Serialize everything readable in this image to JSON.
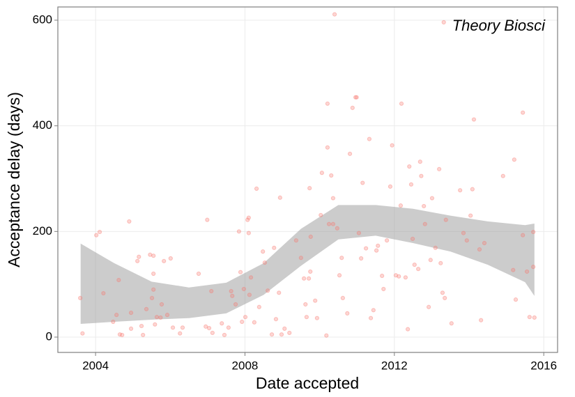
{
  "chart_data": {
    "type": "scatter",
    "x_label": "Date accepted",
    "y_label": "Acceptance delay (days)",
    "xlim": [
      2002.99,
      2016.37
    ],
    "ylim": [
      -29,
      625
    ],
    "xticks": [
      2004,
      2008,
      2012,
      2016
    ],
    "yticks": [
      0,
      200,
      400,
      600
    ],
    "grid": true,
    "legend_position": "top-right",
    "band": {
      "color": "#999999",
      "x": [
        2003.6,
        2004.5,
        2005.5,
        2006.5,
        2007.5,
        2008.5,
        2009.5,
        2010.5,
        2011.5,
        2012.5,
        2013.5,
        2014.5,
        2015.5,
        2015.75
      ],
      "upper": [
        177,
        140,
        105,
        94,
        103,
        140,
        205,
        250,
        250,
        243,
        230,
        219,
        212,
        215
      ],
      "lower": [
        25,
        29,
        33,
        36,
        45,
        80,
        135,
        185,
        192,
        178,
        162,
        137,
        104,
        78
      ]
    },
    "series": [
      {
        "name": "Theory Biosci",
        "color": "#F8766D",
        "x": [
          2003.59,
          2003.65,
          2004.02,
          2004.11,
          2004.21,
          2004.47,
          2004.56,
          2004.62,
          2004.65,
          2004.71,
          2004.9,
          2004.95,
          2004.95,
          2005.12,
          2005.16,
          2005.23,
          2005.27,
          2005.36,
          2005.46,
          2005.51,
          2005.55,
          2005.55,
          2005.55,
          2005.59,
          2005.64,
          2005.74,
          2005.77,
          2005.83,
          2005.92,
          2006.01,
          2006.07,
          2006.26,
          2006.33,
          2006.76,
          2006.95,
          2006.99,
          2007.04,
          2007.1,
          2007.13,
          2007.38,
          2007.45,
          2007.56,
          2007.63,
          2007.66,
          2007.75,
          2007.84,
          2007.88,
          2007.92,
          2007.97,
          2008.01,
          2008.07,
          2008.1,
          2008.1,
          2008.12,
          2008.16,
          2008.25,
          2008.31,
          2008.38,
          2008.48,
          2008.53,
          2008.61,
          2008.72,
          2008.78,
          2008.83,
          2008.91,
          2008.94,
          2008.98,
          2009.06,
          2009.19,
          2009.37,
          2009.5,
          2009.58,
          2009.62,
          2009.65,
          2009.71,
          2009.73,
          2009.75,
          2009.76,
          2009.88,
          2009.93,
          2010.03,
          2010.06,
          2010.18,
          2010.21,
          2010.21,
          2010.25,
          2010.31,
          2010.36,
          2010.36,
          2010.4,
          2010.47,
          2010.53,
          2010.59,
          2010.62,
          2010.74,
          2010.81,
          2010.88,
          2010.96,
          2010.99,
          2011.05,
          2011.11,
          2011.15,
          2011.24,
          2011.33,
          2011.37,
          2011.44,
          2011.52,
          2011.56,
          2011.67,
          2011.71,
          2011.8,
          2011.89,
          2011.94,
          2012.04,
          2012.12,
          2012.17,
          2012.19,
          2012.3,
          2012.36,
          2012.4,
          2012.45,
          2012.49,
          2012.54,
          2012.64,
          2012.69,
          2012.72,
          2012.79,
          2012.82,
          2012.92,
          2012.97,
          2013.01,
          2013.1,
          2013.2,
          2013.24,
          2013.29,
          2013.35,
          2013.38,
          2013.53,
          2013.76,
          2013.85,
          2013.94,
          2014.04,
          2014.09,
          2014.13,
          2014.28,
          2014.32,
          2014.41,
          2014.91,
          2015.18,
          2015.21,
          2015.25,
          2015.44,
          2015.44,
          2015.55,
          2015.62,
          2015.72,
          2015.72,
          2015.75
        ],
        "values": [
          74,
          7,
          193,
          199,
          83,
          29,
          42,
          108,
          5,
          4,
          219,
          16,
          46,
          144,
          152,
          21,
          4,
          53,
          156,
          74,
          154,
          90,
          120,
          24,
          38,
          37,
          62,
          144,
          42,
          149,
          18,
          7,
          18,
          120,
          20,
          222,
          17,
          87,
          8,
          26,
          4,
          18,
          87,
          78,
          62,
          200,
          123,
          29,
          91,
          38,
          222,
          226,
          197,
          80,
          113,
          28,
          281,
          57,
          162,
          141,
          88,
          5,
          169,
          34,
          84,
          264,
          5,
          16,
          8,
          183,
          150,
          111,
          62,
          38,
          111,
          282,
          124,
          190,
          69,
          36,
          231,
          311,
          3,
          442,
          359,
          214,
          306,
          263,
          214,
          611,
          206,
          117,
          150,
          74,
          45,
          347,
          434,
          454,
          454,
          197,
          149,
          292,
          168,
          375,
          36,
          51,
          164,
          173,
          116,
          91,
          183,
          285,
          363,
          117,
          115,
          249,
          442,
          113,
          15,
          323,
          289,
          186,
          137,
          129,
          332,
          305,
          248,
          214,
          57,
          146,
          263,
          169,
          318,
          140,
          84,
          74,
          222,
          26,
          278,
          197,
          183,
          230,
          280,
          412,
          166,
          32,
          178,
          305,
          127,
          336,
          71,
          193,
          425,
          124,
          38,
          133,
          199,
          37
        ]
      }
    ]
  }
}
